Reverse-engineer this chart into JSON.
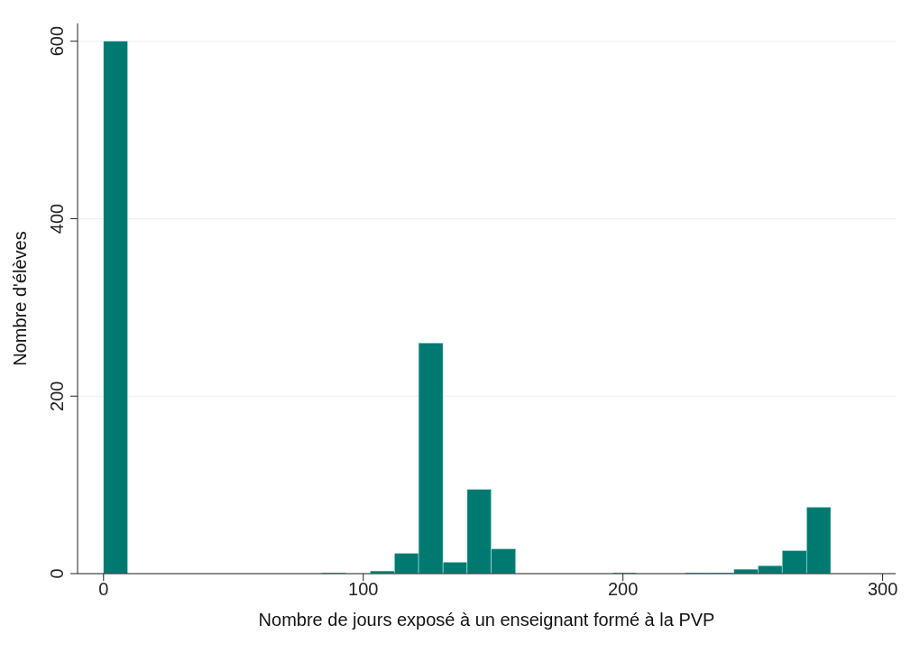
{
  "chart_data": {
    "type": "histogram",
    "xlabel": "Nombre de jours exposé à un enseignant formé à la PVP",
    "ylabel": "Nombre d'élèves",
    "bins": [
      0,
      9.3,
      18.7,
      28,
      37.3,
      46.7,
      56,
      65.3,
      74.7,
      84,
      93.3,
      102.7,
      112,
      121.3,
      130.7,
      140,
      149.3,
      158.7,
      168,
      177.3,
      186.7,
      196,
      205.3,
      214.7,
      224,
      233.3,
      242.7,
      252,
      261.3,
      270.7,
      280
    ],
    "values": [
      600,
      0,
      0,
      0,
      0,
      0,
      0,
      0,
      0,
      1,
      0,
      3,
      23,
      260,
      13,
      95,
      28,
      0,
      0,
      0,
      0,
      1,
      0,
      0,
      1,
      1,
      5,
      9,
      26,
      75
    ],
    "color": "#007a70",
    "xlim": [
      -10,
      305
    ],
    "xticks": [
      0,
      100,
      200,
      300
    ],
    "ylim": [
      0,
      620
    ],
    "yticks": [
      0,
      200,
      400,
      600
    ],
    "grid": "y"
  }
}
